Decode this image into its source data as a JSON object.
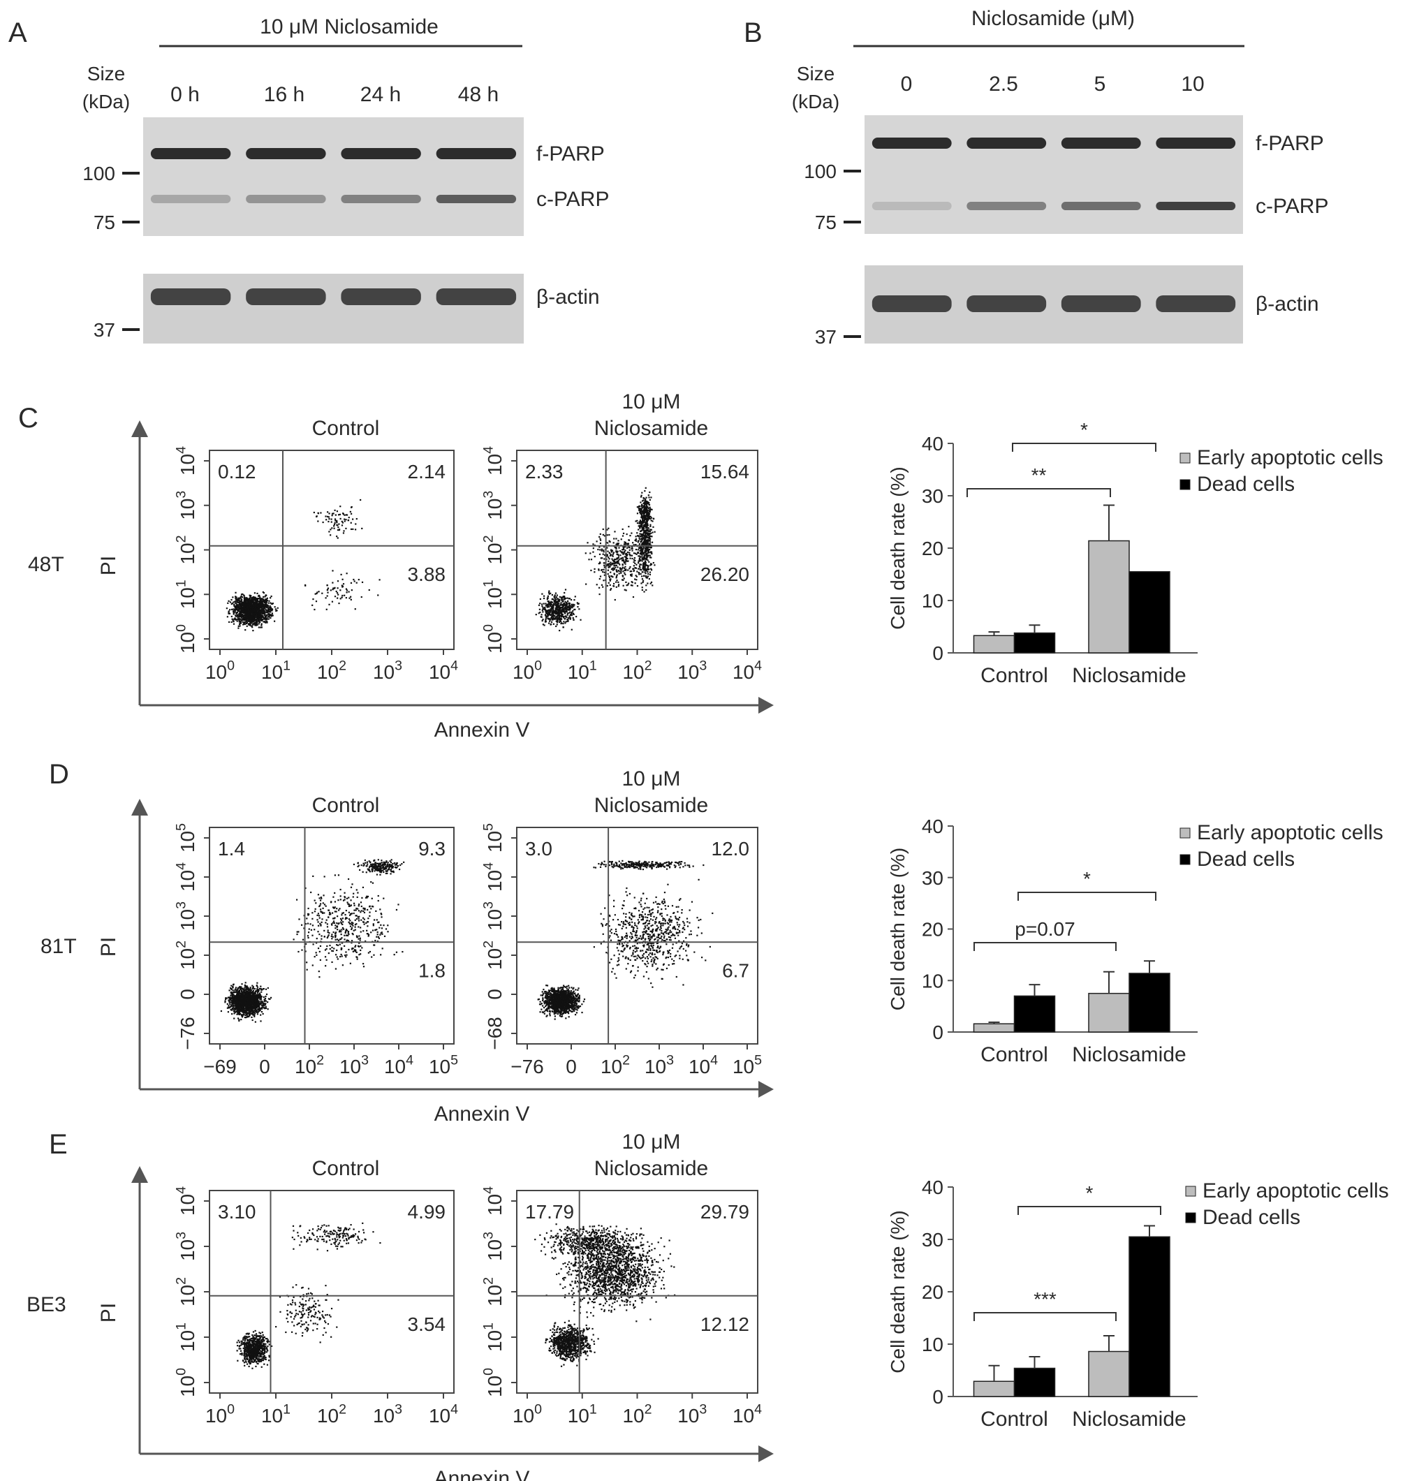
{
  "panels": {
    "A": {
      "letter": "A",
      "treatment": "10 μM Niclosamide",
      "size_label": [
        "Size",
        "(kDa)"
      ],
      "lanes": [
        "0 h",
        "16 h",
        "24 h",
        "48 h"
      ],
      "markers": [
        "100",
        "75",
        "37"
      ],
      "bands": [
        "f-PARP",
        "c-PARP",
        "β-actin"
      ],
      "c_parp_intensity": [
        0.25,
        0.35,
        0.45,
        0.65
      ]
    },
    "B": {
      "letter": "B",
      "treatment": "Niclosamide (μM)",
      "size_label": [
        "Size",
        "(kDa)"
      ],
      "lanes": [
        "0",
        "2.5",
        "5",
        "10"
      ],
      "markers": [
        "100",
        "75",
        "37"
      ],
      "bands": [
        "f-PARP",
        "c-PARP",
        "β-actin"
      ],
      "c_parp_intensity": [
        0.15,
        0.45,
        0.55,
        0.8
      ]
    },
    "C": {
      "letter": "C",
      "cell_line": "48T",
      "y_axis_label": "PI",
      "x_axis_label": "Annexin V",
      "control": {
        "title": "Control",
        "quadrants": {
          "ul": "0.12",
          "ur": "2.14",
          "lr": "3.88"
        },
        "x_ticks": [
          "10",
          "10",
          "10",
          "10",
          "10"
        ],
        "x_exp": [
          "0",
          "1",
          "2",
          "3",
          "4"
        ],
        "y_ticks": [
          "10",
          "10",
          "10",
          "10",
          "10"
        ],
        "y_exp": [
          "0",
          "1",
          "2",
          "3",
          "4"
        ]
      },
      "treated": {
        "title": [
          "10 μM",
          "Niclosamide"
        ],
        "quadrants": {
          "ul": "2.33",
          "ur": "15.64",
          "lr": "26.20"
        },
        "x_ticks": [
          "10",
          "10",
          "10",
          "10",
          "10"
        ],
        "x_exp": [
          "0",
          "1",
          "2",
          "3",
          "4"
        ],
        "y_ticks": [
          "10",
          "10",
          "10",
          "10",
          "10"
        ],
        "y_exp": [
          "0",
          "1",
          "2",
          "3",
          "4"
        ]
      },
      "bar": {
        "ylabel": "Cell death rate (%)",
        "yticks": [
          "0",
          "10",
          "20",
          "30",
          "40"
        ],
        "legend": [
          "Early apoptotic cells",
          "Dead cells"
        ],
        "sig": [
          "**",
          "*"
        ]
      }
    },
    "D": {
      "letter": "D",
      "cell_line": "81T",
      "y_axis_label": "PI",
      "x_axis_label": "Annexin V",
      "control": {
        "title": "Control",
        "quadrants": {
          "ul": "1.4",
          "ur": "9.3",
          "lr": "1.8"
        },
        "x_ticks": [
          "−69",
          "0",
          "10",
          "10",
          "10",
          "10"
        ],
        "x_exp": [
          "",
          "",
          "2",
          "3",
          "4",
          "5"
        ],
        "y_ticks": [
          "−76",
          "0",
          "10",
          "10",
          "10",
          "10"
        ],
        "y_exp": [
          "",
          "",
          "2",
          "3",
          "4",
          "5"
        ]
      },
      "treated": {
        "title": [
          "10 μM",
          "Niclosamide"
        ],
        "quadrants": {
          "ul": "3.0",
          "ur": "12.0",
          "lr": "6.7"
        },
        "x_ticks": [
          "−76",
          "0",
          "10",
          "10",
          "10",
          "10"
        ],
        "x_exp": [
          "",
          "",
          "2",
          "3",
          "4",
          "5"
        ],
        "y_ticks": [
          "−68",
          "0",
          "10",
          "10",
          "10",
          "10"
        ],
        "y_exp": [
          "",
          "",
          "2",
          "3",
          "4",
          "5"
        ]
      },
      "bar": {
        "ylabel": "Cell death rate (%)",
        "yticks": [
          "0",
          "10",
          "20",
          "30",
          "40"
        ],
        "legend": [
          "Early apoptotic cells",
          "Dead cells"
        ],
        "sig": [
          "p=0.07",
          "*"
        ]
      }
    },
    "E": {
      "letter": "E",
      "cell_line": "BE3",
      "y_axis_label": "PI",
      "x_axis_label": "Annexin V",
      "control": {
        "title": "Control",
        "quadrants": {
          "ul": "3.10",
          "ur": "4.99",
          "lr": "3.54"
        },
        "x_ticks": [
          "10",
          "10",
          "10",
          "10",
          "10"
        ],
        "x_exp": [
          "0",
          "1",
          "2",
          "3",
          "4"
        ],
        "y_ticks": [
          "10",
          "10",
          "10",
          "10",
          "10"
        ],
        "y_exp": [
          "0",
          "1",
          "2",
          "3",
          "4"
        ]
      },
      "treated": {
        "title": [
          "10 μM",
          "Niclosamide"
        ],
        "quadrants": {
          "ul": "17.79",
          "ur": "29.79",
          "lr": "12.12"
        },
        "x_ticks": [
          "10",
          "10",
          "10",
          "10",
          "10"
        ],
        "x_exp": [
          "0",
          "1",
          "2",
          "3",
          "4"
        ],
        "y_ticks": [
          "10",
          "10",
          "10",
          "10",
          "10"
        ],
        "y_exp": [
          "0",
          "1",
          "2",
          "3",
          "4"
        ]
      },
      "bar": {
        "ylabel": "Cell death rate (%)",
        "yticks": [
          "0",
          "10",
          "20",
          "30",
          "40"
        ],
        "legend": [
          "Early apoptotic cells",
          "Dead cells"
        ],
        "sig": [
          "***",
          "*"
        ]
      }
    }
  },
  "colors": {
    "early": "#bdbdbd",
    "dead": "#000000",
    "axis": "#555555",
    "blot_bg": "#d6d6d6",
    "band": "#1a1a1a"
  },
  "chart_data": [
    {
      "type": "bar",
      "panel": "C",
      "categories": [
        "Control",
        "Niclosamide"
      ],
      "series": [
        {
          "name": "Early apoptotic cells",
          "values": [
            3.3,
            21.4
          ],
          "errors": [
            0.7,
            6.8
          ]
        },
        {
          "name": "Dead cells",
          "values": [
            3.8,
            15.5
          ],
          "errors": [
            1.5,
            0
          ]
        }
      ],
      "ylabel": "Cell death rate (%)",
      "ylim": [
        0,
        40
      ],
      "legend": "top-right"
    },
    {
      "type": "bar",
      "panel": "D",
      "categories": [
        "Control",
        "Niclosamide"
      ],
      "series": [
        {
          "name": "Early apoptotic cells",
          "values": [
            1.6,
            7.5
          ],
          "errors": [
            0.3,
            4.2
          ]
        },
        {
          "name": "Dead cells",
          "values": [
            7.0,
            11.4
          ],
          "errors": [
            2.2,
            2.4
          ]
        }
      ],
      "ylabel": "Cell death rate (%)",
      "ylim": [
        0,
        40
      ],
      "legend": "top-right"
    },
    {
      "type": "bar",
      "panel": "E",
      "categories": [
        "Control",
        "Niclosamide"
      ],
      "series": [
        {
          "name": "Early apoptotic cells",
          "values": [
            2.9,
            8.6
          ],
          "errors": [
            3.0,
            3.0
          ]
        },
        {
          "name": "Dead cells",
          "values": [
            5.4,
            30.5
          ],
          "errors": [
            2.2,
            2.1
          ]
        }
      ],
      "ylabel": "Cell death rate (%)",
      "ylim": [
        0,
        40
      ],
      "legend": "top-right"
    }
  ]
}
